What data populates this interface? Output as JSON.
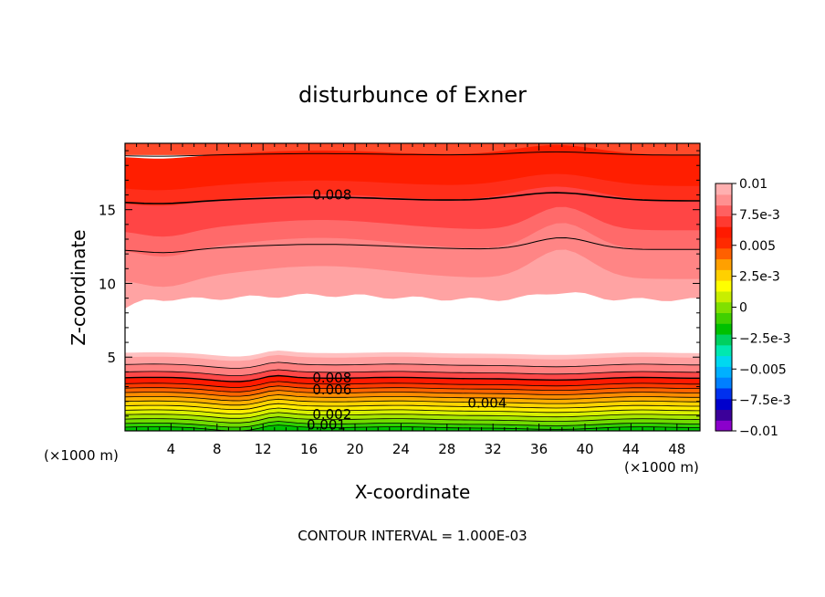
{
  "chart_data": {
    "type": "heatmap",
    "title": "disturbunce of Exner",
    "xlabel": "X-coordinate",
    "ylabel": "Z-coordinate",
    "x_unit": "(×1000 m)",
    "x_unit_left": "(×1000 m)",
    "xlim": [
      0,
      50
    ],
    "ylim": [
      0,
      19.5
    ],
    "x_ticks": [
      4,
      8,
      12,
      16,
      20,
      24,
      28,
      32,
      36,
      40,
      44,
      48
    ],
    "y_ticks": [
      5,
      10,
      15
    ],
    "footer": "CONTOUR INTERVAL = 1.000E-03",
    "colorbar": {
      "range": [
        -0.01,
        0.01
      ],
      "labels": [
        {
          "v": 0.01,
          "t": "0.01"
        },
        {
          "v": 0.0075,
          "t": "7.5e-3"
        },
        {
          "v": 0.005,
          "t": "0.005"
        },
        {
          "v": 0.0025,
          "t": "2.5e-3"
        },
        {
          "v": 0,
          "t": "0"
        },
        {
          "v": -0.0025,
          "t": "−2.5e-3"
        },
        {
          "v": -0.005,
          "t": "−0.005"
        },
        {
          "v": -0.0075,
          "t": "−7.5e-3"
        },
        {
          "v": -0.01,
          "t": "−0.01"
        }
      ],
      "colors": [
        "#8b00cc",
        "#3b0099",
        "#0000cc",
        "#0030ee",
        "#0080ff",
        "#00b0ff",
        "#00d8f0",
        "#00e8b0",
        "#00d060",
        "#00c000",
        "#40d000",
        "#80e000",
        "#c8ee00",
        "#ffff00",
        "#ffd000",
        "#ffa000",
        "#ff6000",
        "#ff2a00",
        "#ff1a00",
        "#ff3a30",
        "#ff6060",
        "#ff9090",
        "#ffb0b0"
      ]
    },
    "contour_labels": [
      {
        "x": 18,
        "z": 16.0,
        "t": "0.008"
      },
      {
        "x": 18,
        "z": 3.6,
        "t": "0.008"
      },
      {
        "x": 18,
        "z": 2.8,
        "t": "0.006"
      },
      {
        "x": 31.5,
        "z": 1.9,
        "t": "0.004"
      },
      {
        "x": 18,
        "z": 1.1,
        "t": "0.002"
      },
      {
        "x": 17.5,
        "z": 0.4,
        "t": "0.001"
      }
    ],
    "upper_region": {
      "bands": [
        {
          "top": 19.5,
          "bottom": 18.7,
          "color": "#ff4a2a"
        },
        {
          "top": 18.7,
          "bottom": 16.6,
          "color": "#ff1e00"
        },
        {
          "top": 16.6,
          "bottom": 15.6,
          "color": "#ff2e1a"
        },
        {
          "top": 15.6,
          "bottom": 13.6,
          "color": "#ff4545"
        },
        {
          "top": 13.6,
          "bottom": 12.3,
          "color": "#ff6a6a"
        },
        {
          "top": 12.3,
          "bottom": 10.3,
          "color": "#ff8585"
        },
        {
          "top": 10.3,
          "bottom": 8.9,
          "color": "#ffa3a3"
        }
      ],
      "contours": [
        {
          "z": 18.7,
          "width": 1
        },
        {
          "z": 15.6,
          "width": 1.6
        },
        {
          "z": 12.3,
          "width": 1
        },
        {
          "z": 9.0,
          "width": 0
        }
      ]
    },
    "lower_region": {
      "bands": [
        {
          "z": 5.3,
          "color": "#ffc0c0"
        },
        {
          "z": 5.0,
          "color": "#ffa0a0"
        },
        {
          "z": 4.5,
          "color": "#ff8080"
        },
        {
          "z": 4.0,
          "color": "#ff4848"
        },
        {
          "z": 3.6,
          "color": "#ff1a00"
        },
        {
          "z": 3.2,
          "color": "#ff3a00"
        },
        {
          "z": 2.9,
          "color": "#ff6400"
        },
        {
          "z": 2.6,
          "color": "#ff8c00"
        },
        {
          "z": 2.3,
          "color": "#ffb000"
        },
        {
          "z": 2.0,
          "color": "#ffd400"
        },
        {
          "z": 1.7,
          "color": "#ffee00"
        },
        {
          "z": 1.4,
          "color": "#d8f000"
        },
        {
          "z": 1.1,
          "color": "#a8e800"
        },
        {
          "z": 0.8,
          "color": "#70dc00"
        },
        {
          "z": 0.5,
          "color": "#30d000"
        },
        {
          "z": 0.25,
          "color": "#00c600"
        }
      ],
      "contour_every": 1
    },
    "grid": false,
    "legend": "right colorbar"
  }
}
